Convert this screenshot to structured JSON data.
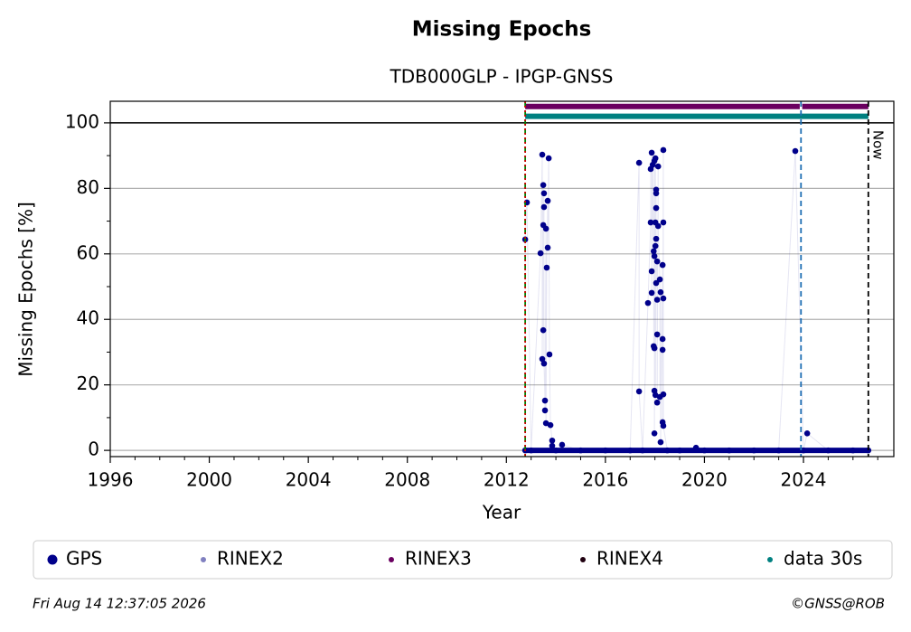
{
  "chart_data": {
    "type": "scatter",
    "title": "Missing Epochs",
    "subtitle": "TDB000GLP - IPGP-GNSS",
    "xlabel": "Year",
    "ylabel": "Missing Epochs [%]",
    "xlim": [
      1996,
      2027.65
    ],
    "ylim": [
      -1.9,
      106.6
    ],
    "xticks": [
      1996,
      2000,
      2004,
      2008,
      2012,
      2016,
      2020,
      2024
    ],
    "xminorticks": [
      1997,
      1998,
      1999,
      2001,
      2002,
      2003,
      2005,
      2006,
      2007,
      2009,
      2010,
      2011,
      2013,
      2014,
      2015,
      2017,
      2018,
      2019,
      2021,
      2022,
      2023,
      2025,
      2026,
      2027
    ],
    "yticks": [
      0,
      20,
      40,
      60,
      80,
      100
    ],
    "yminorticks": [
      10,
      30,
      50,
      70,
      90
    ],
    "grid": true,
    "hline": 100,
    "vlines": [
      {
        "x": 2012.76,
        "color": "#008000",
        "dash": "6,4"
      },
      {
        "x": 2012.76,
        "color": "#cc0000",
        "dash": "2,3"
      },
      {
        "x": 2023.9,
        "color": "#1f6fb4",
        "dash": "6,4"
      },
      {
        "x": 2026.62,
        "color": "#000000",
        "dash": "6,4",
        "label": "Now"
      }
    ],
    "series": [
      {
        "name": "GPS",
        "color": "#00008b",
        "style": "markers",
        "x": [
          2012.76,
          2012.76,
          2012.83,
          2013.0,
          2013.38,
          2013.45,
          2013.45,
          2013.49,
          2013.49,
          2013.49,
          2013.52,
          2013.52,
          2013.52,
          2013.56,
          2013.56,
          2013.6,
          2013.6,
          2013.63,
          2013.67,
          2013.67,
          2013.71,
          2013.74,
          2013.78,
          2013.85,
          2013.85,
          2014.0,
          2014.25,
          2015,
          2016,
          2017,
          2017.36,
          2017.36,
          2017.5,
          2017.72,
          2017.83,
          2017.83,
          2017.87,
          2017.87,
          2017.87,
          2017.91,
          2017.95,
          2017.95,
          2017.98,
          2017.98,
          2017.98,
          2017.98,
          2017.98,
          2018.02,
          2018.02,
          2018.02,
          2018.02,
          2018.05,
          2018.05,
          2018.05,
          2018.05,
          2018.05,
          2018.09,
          2018.09,
          2018.09,
          2018.09,
          2018.13,
          2018.13,
          2018.2,
          2018.2,
          2018.23,
          2018.23,
          2018.31,
          2018.31,
          2018.31,
          2018.31,
          2018.34,
          2018.34,
          2018.34,
          2018.34,
          2018.34,
          2018.5,
          2019,
          2019.66,
          2020,
          2021,
          2022,
          2023,
          2023.67,
          2024,
          2024.15,
          2025,
          2026,
          2026.62
        ],
        "values": [
          0,
          64.4,
          75.7,
          0,
          60.2,
          90.3,
          27.9,
          81,
          68.8,
          36.7,
          78.5,
          74.3,
          26.5,
          15.2,
          12.2,
          67.7,
          8.3,
          55.8,
          76.2,
          61.9,
          89.2,
          29.3,
          7.7,
          3,
          1.4,
          0,
          1.7,
          0,
          0,
          0,
          87.8,
          18,
          0,
          45,
          69.6,
          85.9,
          90.9,
          54.7,
          48.1,
          87.2,
          60.8,
          31.8,
          88.4,
          59.3,
          31.2,
          18.2,
          5.2,
          89.2,
          69.6,
          62.4,
          16.9,
          74,
          79.6,
          78.5,
          64.6,
          51.1,
          57.7,
          46,
          35.4,
          14.6,
          86.7,
          68.5,
          52.2,
          16.3,
          48.3,
          2.5,
          56.6,
          34,
          30.7,
          8.6,
          91.7,
          69.6,
          46.4,
          17.1,
          7.5,
          0,
          0,
          0.8,
          0,
          0,
          0,
          0,
          91.4,
          0,
          5.2,
          0,
          0,
          0
        ]
      },
      {
        "name": "RINEX2",
        "color": "#8080c0",
        "style": "markers",
        "x": [],
        "values": []
      },
      {
        "name": "RINEX3",
        "color": "#6a0060",
        "style": "band",
        "x": [
          2012.76,
          2023.85,
          2023.9,
          2023.95,
          2026.62
        ],
        "values": [
          105,
          105,
          null,
          105,
          105
        ]
      },
      {
        "name": "RINEX4",
        "color": "#200010",
        "style": "markers",
        "x": [],
        "values": []
      },
      {
        "name": "data 30s",
        "color": "#008080",
        "style": "band",
        "x": [
          2012.76,
          2026.62
        ],
        "values": [
          102,
          102
        ]
      }
    ],
    "footer_left": "Fri Aug 14 12:37:05 2026",
    "footer_right": "©GNSS@ROB"
  }
}
